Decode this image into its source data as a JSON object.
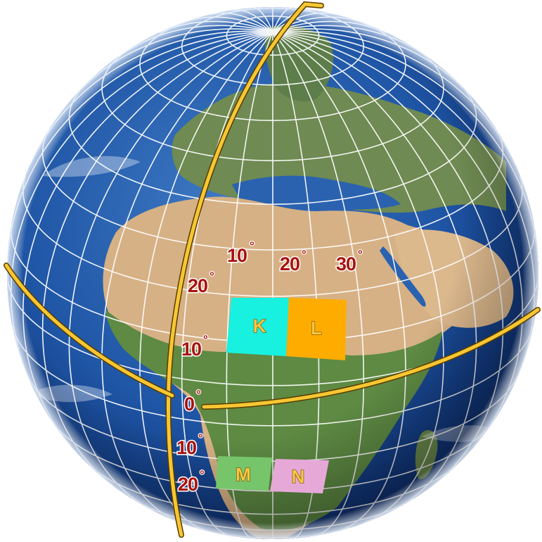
{
  "map": {
    "degree_symbol": "°",
    "longitude_labels": [
      {
        "value": "10"
      },
      {
        "value": "20"
      },
      {
        "value": "30"
      }
    ],
    "latitude_labels_north": [
      {
        "value": "20"
      },
      {
        "value": "10"
      }
    ],
    "equator_label": {
      "value": "0"
    },
    "latitude_labels_south": [
      {
        "value": "10"
      },
      {
        "value": "20"
      }
    ],
    "regions": [
      {
        "label": "K",
        "color": "#18f1e0"
      },
      {
        "label": "L",
        "color": "#ffac00"
      },
      {
        "label": "M",
        "color": "#76c56b"
      },
      {
        "label": "N",
        "color": "#e6a9d7"
      }
    ],
    "colors": {
      "ocean": "#1a4f9e",
      "land_desert": "#d8b38a",
      "land_green": "#4f7a3a",
      "graticule": "#ffffff",
      "highlight_line": "#f7c733",
      "label_text": "#a8120f"
    }
  }
}
